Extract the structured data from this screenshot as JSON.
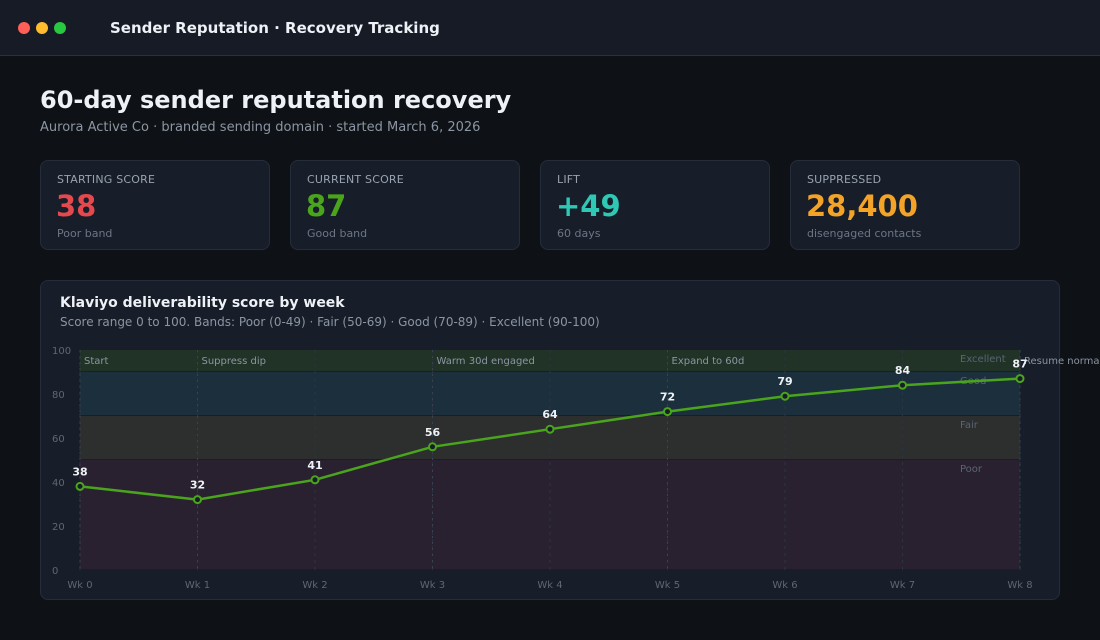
{
  "window": {
    "title": "Sender Reputation · Recovery Tracking"
  },
  "header": {
    "title": "60-day sender reputation recovery",
    "subtitle": "Aurora Active Co · branded sending domain · started March 6, 2026"
  },
  "stats": [
    {
      "label": "STARTING SCORE",
      "value": "38",
      "note": "Poor band",
      "color": "#e5484d"
    },
    {
      "label": "CURRENT SCORE",
      "value": "87",
      "note": "Good band",
      "color": "#4aa51c"
    },
    {
      "label": "LIFT",
      "value": "+49",
      "note": "60 days",
      "color": "#2ec8b4"
    },
    {
      "label": "SUPPRESSED",
      "value": "28,400",
      "note": "disengaged contacts",
      "color": "#f2a328"
    }
  ],
  "chart_data": {
    "type": "line",
    "title": "Klaviyo deliverability score by week",
    "subtitle": "Score range 0 to 100. Bands: Poor (0-49) · Fair (50-69) · Good (70-89) · Excellent (90-100)",
    "categories": [
      "Wk 0",
      "Wk 1",
      "Wk 2",
      "Wk 3",
      "Wk 4",
      "Wk 5",
      "Wk 6",
      "Wk 7",
      "Wk 8"
    ],
    "series": [
      {
        "values": [
          38,
          32,
          41,
          56,
          64,
          72,
          79,
          84,
          87
        ],
        "color": "#4aa51c"
      }
    ],
    "ylim": [
      0,
      100
    ],
    "yticks": [
      0,
      20,
      40,
      60,
      80,
      100
    ],
    "bands": [
      {
        "name": "Excellent",
        "from": 90,
        "to": 100,
        "color": "#213326"
      },
      {
        "name": "Good",
        "from": 70,
        "to": 89,
        "color": "#1b2f3c"
      },
      {
        "name": "Fair",
        "from": 50,
        "to": 69,
        "color": "#2d2e2e"
      },
      {
        "name": "Poor",
        "from": 0,
        "to": 49,
        "color": "#2a2130"
      }
    ],
    "annotations": [
      {
        "x": 0,
        "label": "Start"
      },
      {
        "x": 1,
        "label": "Suppress dip"
      },
      {
        "x": 3,
        "label": "Warm 30d engaged"
      },
      {
        "x": 5,
        "label": "Expand to 60d"
      },
      {
        "x": 8,
        "label": "Resume normal"
      }
    ]
  }
}
